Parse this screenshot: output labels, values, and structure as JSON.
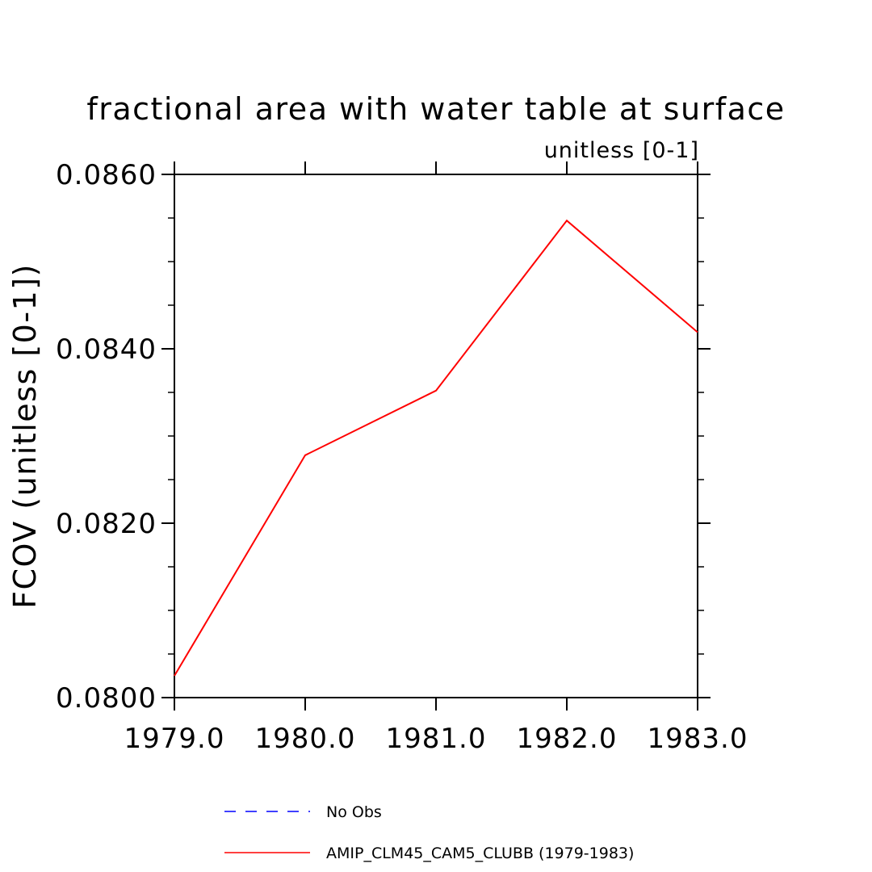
{
  "chart_data": {
    "type": "line",
    "title": "fractional area with water table at surface",
    "subtitle": "unitless [0-1]",
    "xlabel": "",
    "ylabel": "FCOV  (unitless [0-1])",
    "xlim": [
      1979.0,
      1983.0
    ],
    "ylim": [
      0.08,
      0.086
    ],
    "x_ticks": [
      1979.0,
      1980.0,
      1981.0,
      1982.0,
      1983.0
    ],
    "x_tick_labels": [
      "1979.0",
      "1980.0",
      "1981.0",
      "1982.0",
      "1983.0"
    ],
    "y_ticks": [
      0.08,
      0.082,
      0.084,
      0.086
    ],
    "y_tick_labels": [
      "0.0800",
      "0.0820",
      "0.0840",
      "0.0860"
    ],
    "y_minor_step": 0.0005,
    "x_minor_step": 0.25,
    "grid": false,
    "legend_position": "bottom",
    "series": [
      {
        "name": "AMIP_CLM45_CAM5_CLUBB (1979-1983)",
        "color": "#ff0000",
        "dash": "solid",
        "x": [
          1979.0,
          1980.0,
          1981.0,
          1982.0,
          1983.0
        ],
        "values": [
          0.08025,
          0.08278,
          0.08352,
          0.08547,
          0.08419
        ]
      }
    ],
    "legend": [
      {
        "label": "No Obs",
        "color": "#0000ff",
        "dash": "dashed"
      },
      {
        "label": "AMIP_CLM45_CAM5_CLUBB (1979-1983)",
        "color": "#ff0000",
        "dash": "solid"
      }
    ]
  }
}
